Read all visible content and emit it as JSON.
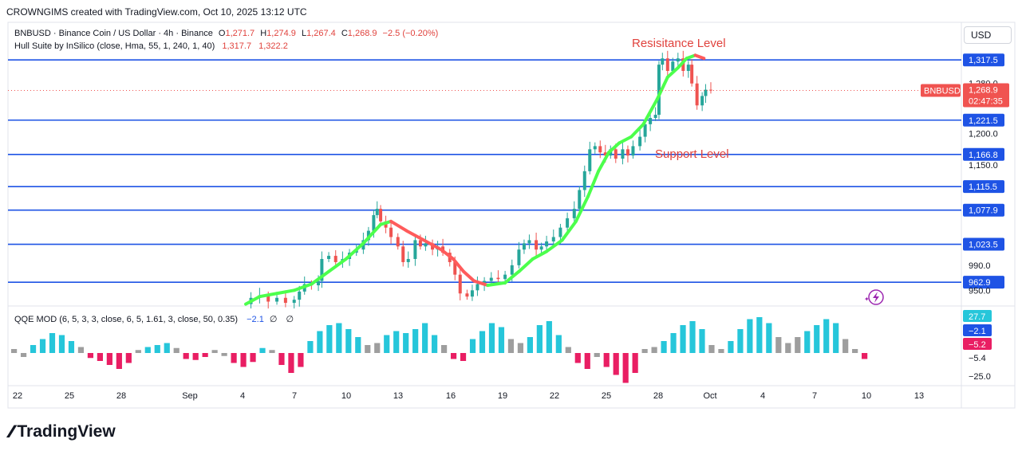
{
  "header": {
    "text": "CROWNGIMS created with TradingView.com, Oct 10, 2025 13:12 UTC"
  },
  "legend": {
    "symbol": "BNBUSD · Binance Coin / US Dollar · 4h · Binance",
    "o_label": "O",
    "o_val": "1,271.7",
    "h_label": "H",
    "h_val": "1,274.9",
    "l_label": "L",
    "l_val": "1,267.4",
    "c_label": "C",
    "c_val": "1,268.9",
    "chg": "−2.5 (−0.20%)",
    "hull_name": "Hull Suite by InSilico (close, Hma, 55, 1, 240, 1, 40)",
    "hull_v1": "1,317.7",
    "hull_v2": "1,322.2",
    "qqe_name": "QQE MOD (6, 5, 3, 3, close, 6, 5, 1.61, 3, close, 50, 0.35)",
    "qqe_val": "−2.1",
    "qqe_sym1": "∅",
    "qqe_sym2": "∅"
  },
  "currency_button": "USD",
  "annotations": {
    "resistance": "Resisitance Level",
    "support": "Support Level"
  },
  "colors": {
    "up": "#26a69a",
    "down": "#ef5350",
    "level": "#1e53e5",
    "hull_up": "#4cff4c",
    "hull_down": "#ff5b5b",
    "qqe_blue": "#26c6da",
    "qqe_gray": "#9e9e9e",
    "qqe_pink": "#e91e63",
    "price_tag": "#f05350"
  },
  "brand": {
    "logo": "TradingView"
  },
  "chart_data": {
    "type": "candlestick",
    "symbol": "BNBUSD",
    "timeframe": "4h",
    "ylim": [
      925,
      1375
    ],
    "y_ticks": [
      "1,280.0",
      "1,200.0",
      "1,150.0",
      "990.0",
      "950.0"
    ],
    "horizontal_levels": [
      {
        "label": "1,317.5",
        "value": 1317.5
      },
      {
        "label": "1,221.5",
        "value": 1221.5
      },
      {
        "label": "1,166.8",
        "value": 1166.8
      },
      {
        "label": "1,115.5",
        "value": 1115.5
      },
      {
        "label": "1,077.9",
        "value": 1077.9
      },
      {
        "label": "1,023.5",
        "value": 1023.5
      },
      {
        "label": "962.9",
        "value": 962.9
      }
    ],
    "current_price": {
      "symbol": "BNBUSD",
      "label": "1,268.9",
      "value": 1268.9,
      "countdown": "02:47:35"
    },
    "x_ticks": [
      "22",
      "25",
      "28",
      "Sep",
      "4",
      "7",
      "10",
      "13",
      "16",
      "19",
      "22",
      "25",
      "28",
      "Oct",
      "4",
      "7",
      "10",
      "13"
    ],
    "price_path_days": [
      [
        13.0,
        928
      ],
      [
        13.5,
        938
      ],
      [
        14.0,
        942
      ],
      [
        14.5,
        932
      ],
      [
        15.0,
        938
      ],
      [
        15.5,
        930
      ],
      [
        16.0,
        935
      ],
      [
        16.3,
        948
      ],
      [
        16.6,
        960
      ],
      [
        17.0,
        958
      ],
      [
        17.4,
        965
      ],
      [
        17.6,
        1000
      ],
      [
        18.0,
        1005
      ],
      [
        18.4,
        995
      ],
      [
        18.8,
        1000
      ],
      [
        19.2,
        1010
      ],
      [
        19.6,
        1015
      ],
      [
        20.0,
        1030
      ],
      [
        20.3,
        1045
      ],
      [
        20.6,
        1070
      ],
      [
        20.8,
        1080
      ],
      [
        21.0,
        1060
      ],
      [
        21.3,
        1050
      ],
      [
        21.6,
        1035
      ],
      [
        22.0,
        1020
      ],
      [
        22.3,
        995
      ],
      [
        22.6,
        1000
      ],
      [
        23.0,
        1030
      ],
      [
        23.3,
        1020
      ],
      [
        23.6,
        1025
      ],
      [
        24.0,
        1015
      ],
      [
        24.3,
        1020
      ],
      [
        24.6,
        1010
      ],
      [
        25.0,
        995
      ],
      [
        25.3,
        975
      ],
      [
        25.6,
        945
      ],
      [
        26.0,
        940
      ],
      [
        26.3,
        950
      ],
      [
        26.6,
        960
      ],
      [
        27.0,
        965
      ],
      [
        27.4,
        970
      ],
      [
        27.8,
        968
      ],
      [
        28.2,
        975
      ],
      [
        28.6,
        990
      ],
      [
        29.0,
        1015
      ],
      [
        29.3,
        1025
      ],
      [
        29.6,
        1030
      ],
      [
        30.0,
        1015
      ],
      [
        30.3,
        1020
      ],
      [
        30.6,
        1028
      ],
      [
        31.0,
        1035
      ],
      [
        31.4,
        1050
      ],
      [
        31.8,
        1065
      ],
      [
        32.2,
        1080
      ],
      [
        32.5,
        1110
      ],
      [
        32.8,
        1140
      ],
      [
        33.1,
        1175
      ],
      [
        33.4,
        1180
      ],
      [
        33.7,
        1170
      ],
      [
        34.0,
        1165
      ],
      [
        34.3,
        1175
      ],
      [
        34.6,
        1160
      ],
      [
        35.0,
        1175
      ],
      [
        35.3,
        1165
      ],
      [
        35.6,
        1180
      ],
      [
        36.0,
        1195
      ],
      [
        36.3,
        1215
      ],
      [
        36.6,
        1225
      ],
      [
        36.9,
        1230
      ],
      [
        37.1,
        1310
      ],
      [
        37.3,
        1320
      ],
      [
        37.6,
        1300
      ],
      [
        37.9,
        1315
      ],
      [
        38.2,
        1320
      ],
      [
        38.5,
        1300
      ],
      [
        38.8,
        1310
      ],
      [
        39.0,
        1280
      ],
      [
        39.3,
        1245
      ],
      [
        39.6,
        1260
      ],
      [
        39.8,
        1270
      ],
      [
        40.1,
        1268.9
      ]
    ],
    "hull_path_days": [
      [
        13.2,
        928
      ],
      [
        14.0,
        940
      ],
      [
        15.0,
        945
      ],
      [
        16.0,
        950
      ],
      [
        17.0,
        960
      ],
      [
        18.0,
        980
      ],
      [
        19.0,
        1000
      ],
      [
        20.0,
        1025
      ],
      [
        21.0,
        1055
      ],
      [
        21.6,
        1060
      ],
      [
        22.5,
        1045
      ],
      [
        23.5,
        1030
      ],
      [
        24.5,
        1015
      ],
      [
        25.2,
        1000
      ],
      [
        25.8,
        980
      ],
      [
        26.4,
        965
      ],
      [
        27.2,
        958
      ],
      [
        28.2,
        962
      ],
      [
        29.0,
        980
      ],
      [
        29.8,
        1000
      ],
      [
        30.6,
        1012
      ],
      [
        31.5,
        1030
      ],
      [
        32.3,
        1060
      ],
      [
        33.0,
        1100
      ],
      [
        33.6,
        1140
      ],
      [
        34.2,
        1170
      ],
      [
        34.8,
        1185
      ],
      [
        35.5,
        1195
      ],
      [
        36.2,
        1215
      ],
      [
        37.0,
        1255
      ],
      [
        37.6,
        1290
      ],
      [
        38.2,
        1305
      ],
      [
        38.7,
        1320
      ],
      [
        39.2,
        1325
      ],
      [
        39.7,
        1320
      ]
    ],
    "qqe_ylim": [
      -30,
      32
    ],
    "qqe_ticks": [
      "27.7",
      "−2.1",
      "−5.2",
      "−5.4",
      "−25.0"
    ],
    "qqe_histogram": [
      [
        "g",
        4
      ],
      [
        "g",
        -4
      ],
      [
        "b",
        8
      ],
      [
        "b",
        14
      ],
      [
        "b",
        20
      ],
      [
        "b",
        18
      ],
      [
        "b",
        12
      ],
      [
        "g",
        6
      ],
      [
        "p",
        -5
      ],
      [
        "p",
        -8
      ],
      [
        "p",
        -12
      ],
      [
        "p",
        -16
      ],
      [
        "p",
        -10
      ],
      [
        "g",
        3
      ],
      [
        "b",
        6
      ],
      [
        "b",
        8
      ],
      [
        "b",
        10
      ],
      [
        "g",
        5
      ],
      [
        "p",
        -6
      ],
      [
        "p",
        -7
      ],
      [
        "p",
        -4
      ],
      [
        "g",
        3
      ],
      [
        "g",
        -3
      ],
      [
        "p",
        -10
      ],
      [
        "p",
        -14
      ],
      [
        "p",
        -9
      ],
      [
        "b",
        5
      ],
      [
        "g",
        3
      ],
      [
        "p",
        -12
      ],
      [
        "p",
        -20
      ],
      [
        "p",
        -14
      ],
      [
        "b",
        12
      ],
      [
        "b",
        22
      ],
      [
        "b",
        28
      ],
      [
        "b",
        30
      ],
      [
        "b",
        24
      ],
      [
        "b",
        16
      ],
      [
        "g",
        8
      ],
      [
        "g",
        10
      ],
      [
        "b",
        18
      ],
      [
        "b",
        22
      ],
      [
        "b",
        20
      ],
      [
        "b",
        24
      ],
      [
        "b",
        30
      ],
      [
        "b",
        18
      ],
      [
        "g",
        8
      ],
      [
        "p",
        -6
      ],
      [
        "p",
        -8
      ],
      [
        "b",
        14
      ],
      [
        "b",
        22
      ],
      [
        "b",
        30
      ],
      [
        "b",
        26
      ],
      [
        "g",
        14
      ],
      [
        "g",
        10
      ],
      [
        "b",
        16
      ],
      [
        "b",
        28
      ],
      [
        "b",
        32
      ],
      [
        "b",
        18
      ],
      [
        "g",
        6
      ],
      [
        "p",
        -10
      ],
      [
        "p",
        -16
      ],
      [
        "g",
        -4
      ],
      [
        "p",
        -14
      ],
      [
        "p",
        -22
      ],
      [
        "p",
        -30
      ],
      [
        "p",
        -20
      ],
      [
        "g",
        4
      ],
      [
        "g",
        6
      ],
      [
        "b",
        12
      ],
      [
        "b",
        20
      ],
      [
        "b",
        28
      ],
      [
        "b",
        32
      ],
      [
        "b",
        24
      ],
      [
        "g",
        8
      ],
      [
        "g",
        4
      ],
      [
        "b",
        12
      ],
      [
        "b",
        24
      ],
      [
        "b",
        34
      ],
      [
        "b",
        36
      ],
      [
        "b",
        30
      ],
      [
        "g",
        16
      ],
      [
        "g",
        10
      ],
      [
        "g",
        16
      ],
      [
        "b",
        22
      ],
      [
        "b",
        28
      ],
      [
        "b",
        34
      ],
      [
        "b",
        30
      ],
      [
        "g",
        14
      ],
      [
        "g",
        4
      ],
      [
        "p",
        -6
      ]
    ]
  }
}
